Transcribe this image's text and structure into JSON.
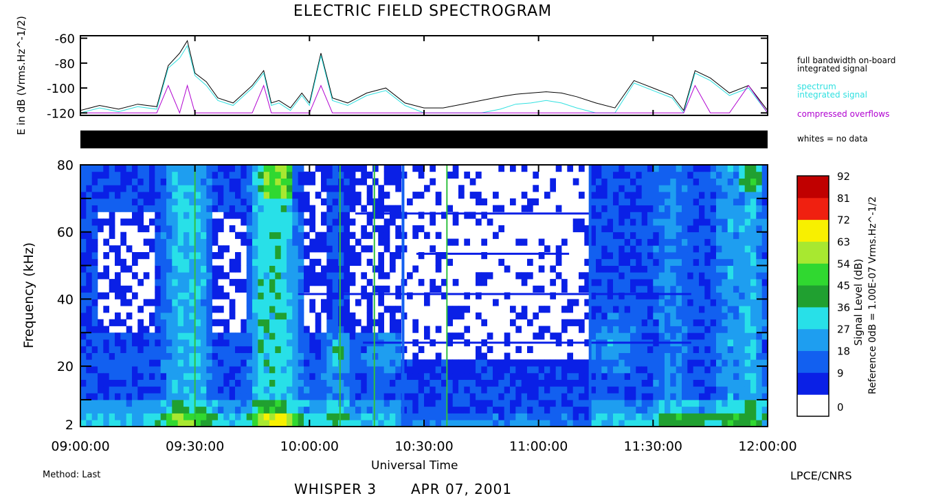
{
  "title": "ELECTRIC FIELD SPECTROGRAM",
  "footer": {
    "instrument": "WHISPER 3",
    "date": "APR 07, 2001",
    "method": "Method: Last",
    "lab": "LPCE/CNRS"
  },
  "legend": {
    "full_bandwidth": [
      "full bandwidth on-board",
      "integrated signal"
    ],
    "spectrum": [
      "spectrum",
      "integrated signal"
    ],
    "overflows": "compressed overflows",
    "no_data": "whites = no data"
  },
  "colors": {
    "full_bandwidth": "#000000",
    "spectrum": "#2fe0e0",
    "overflows": "#b000d0",
    "bar": "#000000"
  },
  "chart_data": [
    {
      "type": "line",
      "panel": "top",
      "ylabel": "E in dB (Vrms.Hz^-1/2)",
      "ylim": [
        -122,
        -58
      ],
      "y_ticks": [
        "-60",
        "-80",
        "-100",
        "-120"
      ],
      "x_ticks": [
        "09:00:00",
        "09:30:00",
        "10:00:00",
        "10:30:00",
        "11:00:00",
        "11:30:00",
        "12:00:00"
      ],
      "x_minutes": [
        0,
        5,
        10,
        15,
        20,
        23,
        26,
        28,
        30,
        33,
        36,
        40,
        45,
        48,
        50,
        52,
        55,
        58,
        60,
        63,
        66,
        70,
        75,
        80,
        85,
        90,
        95,
        100,
        105,
        110,
        114,
        118,
        122,
        126,
        130,
        135,
        140,
        145,
        150,
        155,
        158,
        161,
        165,
        170,
        175,
        180
      ],
      "series": [
        {
          "name": "full bandwidth on-board integrated signal",
          "values": [
            -118,
            -114,
            -117,
            -113,
            -115,
            -82,
            -72,
            -62,
            -88,
            -95,
            -108,
            -112,
            -98,
            -86,
            -112,
            -110,
            -116,
            -104,
            -112,
            -72,
            -108,
            -112,
            -104,
            -100,
            -112,
            -116,
            -116,
            -113,
            -110,
            -107,
            -105,
            -104,
            -103,
            -104,
            -107,
            -112,
            -116,
            -94,
            -100,
            -106,
            -118,
            -86,
            -92,
            -104,
            -98,
            -118
          ]
        },
        {
          "name": "spectrum integrated signal",
          "values": [
            -120,
            -116,
            -119,
            -115,
            -117,
            -84,
            -76,
            -66,
            -90,
            -98,
            -110,
            -114,
            -100,
            -88,
            -114,
            -112,
            -118,
            -106,
            -114,
            -74,
            -110,
            -114,
            -106,
            -102,
            -114,
            -120,
            -120,
            -120,
            -120,
            -117,
            -113,
            -112,
            -110,
            -112,
            -116,
            -120,
            -120,
            -96,
            -102,
            -108,
            -120,
            -88,
            -94,
            -106,
            -100,
            -120
          ]
        },
        {
          "name": "compressed overflows",
          "values": [
            -120,
            -120,
            -120,
            -120,
            -120,
            -98,
            -120,
            -98,
            -120,
            -120,
            -120,
            -120,
            -120,
            -98,
            -120,
            -120,
            -120,
            -120,
            -120,
            -98,
            -120,
            -120,
            -120,
            -120,
            -120,
            -120,
            -120,
            -120,
            -120,
            -120,
            -120,
            -120,
            -120,
            -120,
            -120,
            -120,
            -120,
            -120,
            -120,
            -120,
            -120,
            -98,
            -120,
            -120,
            -98,
            -120
          ]
        }
      ]
    },
    {
      "type": "heatmap",
      "panel": "main",
      "xlabel": "Universal Time",
      "ylabel": "Frequency (kHz)",
      "x_ticks": [
        "09:00:00",
        "09:30:00",
        "10:00:00",
        "10:30:00",
        "11:00:00",
        "11:30:00",
        "12:00:00"
      ],
      "y_ticks": [
        "2",
        "20",
        "40",
        "60",
        "80"
      ],
      "xlim_minutes": [
        0,
        180
      ],
      "ylim": [
        2,
        80
      ],
      "colorbar": {
        "label": "Signal Level (dB)",
        "reference": "Reference 0dB = 1.00E-07 Vrms.Hz^-1/2",
        "levels": [
          "0",
          "9",
          "18",
          "27",
          "36",
          "45",
          "54",
          "63",
          "72",
          "81",
          "92"
        ],
        "colors": [
          "#ffffff",
          "#0a20e6",
          "#1260f0",
          "#1e9ef0",
          "#28e0e8",
          "#20a030",
          "#30d830",
          "#a8e830",
          "#f8f000",
          "#f02010",
          "#c00000"
        ]
      }
    }
  ]
}
